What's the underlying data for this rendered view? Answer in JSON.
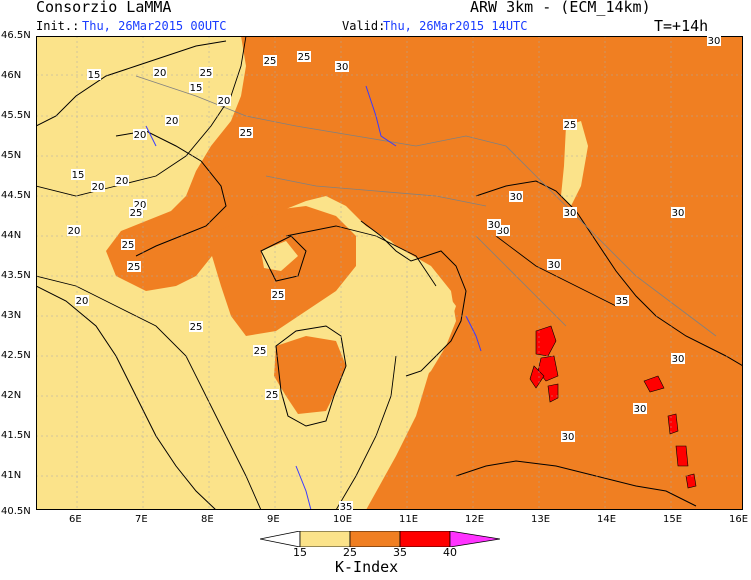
{
  "header": {
    "org": "Consorzio LaMMA",
    "model": "ARW 3km - (ECM_14km)",
    "init_label": "Init.:",
    "init_value": "Thu, 26Mar2015 00UTC",
    "valid_label": "Valid:",
    "valid_value": "Thu, 26Mar2015 14UTC",
    "lead": "T=+14h"
  },
  "axes": {
    "lat_ticks": [
      "46.5N",
      "46N",
      "45.5N",
      "45N",
      "44.5N",
      "44N",
      "43.5N",
      "43N",
      "42.5N",
      "42N",
      "41.5N",
      "41N",
      "40.5N"
    ],
    "lon_ticks": [
      "6E",
      "7E",
      "8E",
      "9E",
      "10E",
      "11E",
      "12E",
      "13E",
      "14E",
      "15E",
      "16E"
    ]
  },
  "contour_labels": [
    {
      "text": "15"
    },
    {
      "text": "15"
    },
    {
      "text": "15"
    },
    {
      "text": "20"
    },
    {
      "text": "20"
    },
    {
      "text": "20"
    },
    {
      "text": "20"
    },
    {
      "text": "20"
    },
    {
      "text": "20"
    },
    {
      "text": "20"
    },
    {
      "text": "20"
    },
    {
      "text": "20"
    },
    {
      "text": "25"
    },
    {
      "text": "25"
    },
    {
      "text": "25"
    },
    {
      "text": "25"
    },
    {
      "text": "25"
    },
    {
      "text": "25"
    },
    {
      "text": "25"
    },
    {
      "text": "25"
    },
    {
      "text": "25"
    },
    {
      "text": "25"
    },
    {
      "text": "25"
    },
    {
      "text": "25"
    },
    {
      "text": "30"
    },
    {
      "text": "30"
    },
    {
      "text": "30"
    },
    {
      "text": "30"
    },
    {
      "text": "30"
    },
    {
      "text": "30"
    },
    {
      "text": "30"
    },
    {
      "text": "30"
    },
    {
      "text": "30"
    },
    {
      "text": "30"
    },
    {
      "text": "30"
    },
    {
      "text": "35"
    },
    {
      "text": "35"
    }
  ],
  "colorbar": {
    "title": "K-Index",
    "ticks": [
      "15",
      "25",
      "35",
      "40"
    ],
    "colors": [
      "#ffffff",
      "#fbe38a",
      "#f07f22",
      "#ff0000",
      "#ff33ff"
    ]
  },
  "colors": {
    "k_lt_15": "#ffffff",
    "k_15_25": "#fbe38a",
    "k_25_35": "#f07f22",
    "k_35_40": "#ff0000",
    "coast": "#000000",
    "rivers": "#3a3aff",
    "borders": "#808080"
  }
}
